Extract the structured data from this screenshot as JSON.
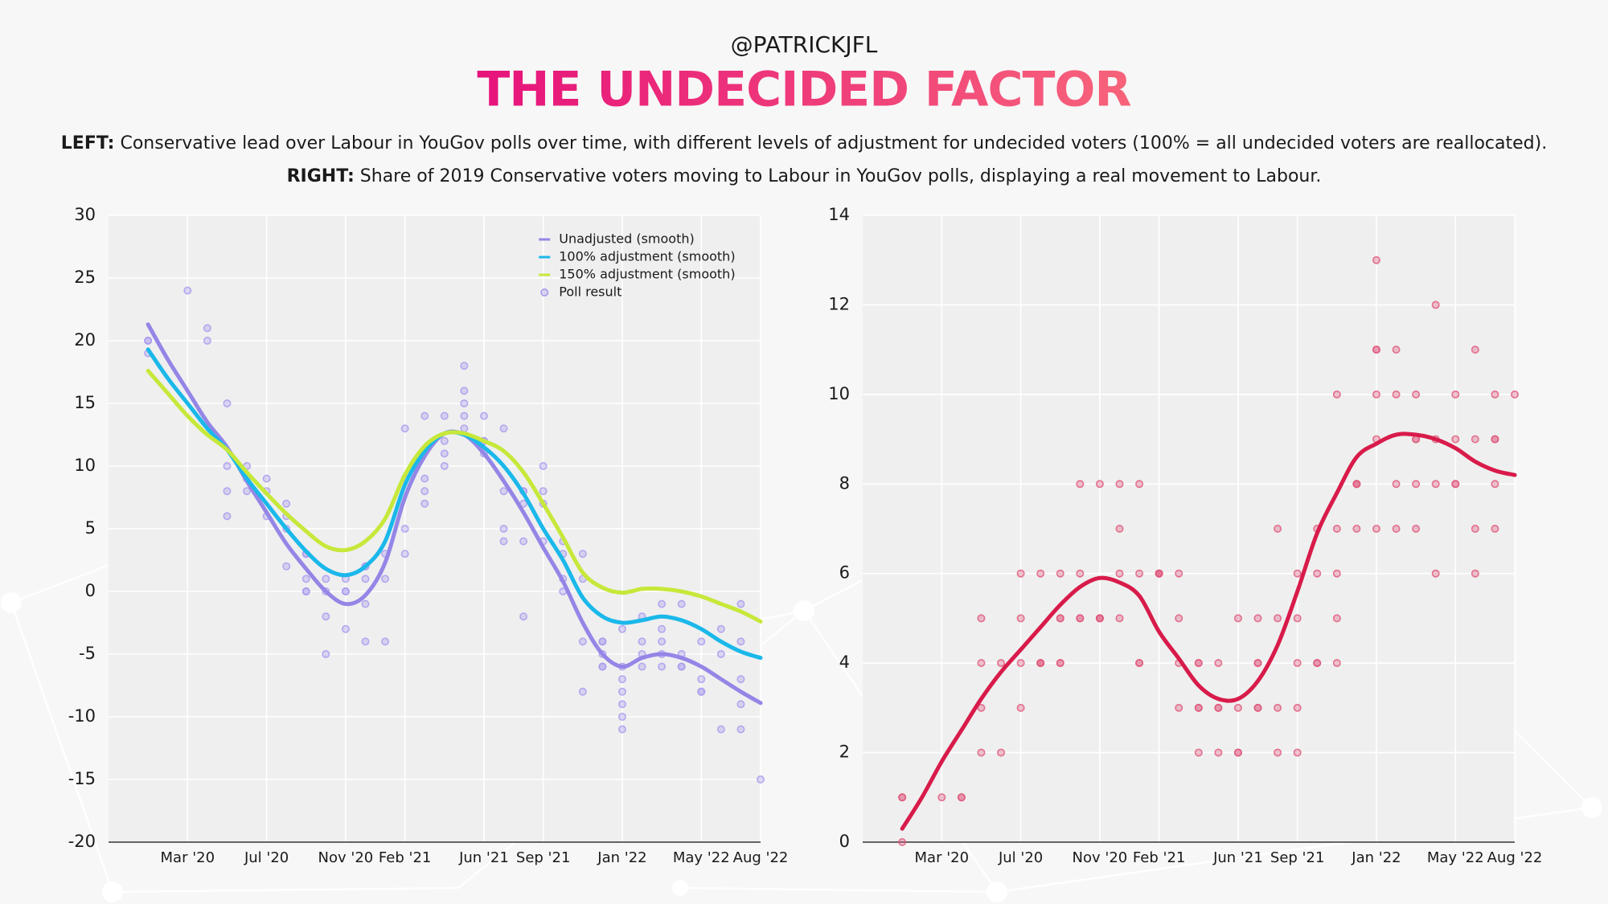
{
  "header": {
    "handle": "@PATRICKJFL",
    "title": "THE UNDECIDED FACTOR",
    "left": {
      "label": "LEFT:",
      "text": "Conservative lead over Labour in YouGov polls over time, with different levels of adjustment for undecided voters (100% = all undecided voters are reallocated)."
    },
    "right": {
      "label": "RIGHT:",
      "text": "Share of 2019 Conservative voters moving to Labour in YouGov polls, displaying a real movement to Labour."
    }
  },
  "chart_data": [
    {
      "type": "line",
      "grid": true,
      "legend": "upper right",
      "xlim": [
        "2019-11",
        "2022-08"
      ],
      "xticks": [
        {
          "value": "2020-03",
          "label": "Mar '20"
        },
        {
          "value": "2020-07",
          "label": "Jul '20"
        },
        {
          "value": "2020-11",
          "label": "Nov '20"
        },
        {
          "value": "2021-02",
          "label": "Feb '21"
        },
        {
          "value": "2021-06",
          "label": "Jun '21"
        },
        {
          "value": "2021-09",
          "label": "Sep '21"
        },
        {
          "value": "2022-01",
          "label": "Jan '22"
        },
        {
          "value": "2022-05",
          "label": "May '22"
        },
        {
          "value": "2022-08",
          "label": "Aug '22"
        }
      ],
      "ylim": [
        -20,
        30
      ],
      "yticks": [
        -20,
        -15,
        -10,
        -5,
        0,
        5,
        10,
        15,
        20,
        25,
        30
      ],
      "x": [
        "2020-01",
        "2020-02",
        "2020-03",
        "2020-04",
        "2020-05",
        "2020-06",
        "2020-07",
        "2020-08",
        "2020-09",
        "2020-10",
        "2020-11",
        "2020-12",
        "2021-01",
        "2021-02",
        "2021-03",
        "2021-04",
        "2021-05",
        "2021-06",
        "2021-07",
        "2021-08",
        "2021-09",
        "2021-10",
        "2021-11",
        "2021-12",
        "2022-01",
        "2022-02",
        "2022-03",
        "2022-04",
        "2022-05",
        "2022-06",
        "2022-07",
        "2022-08"
      ],
      "series": [
        {
          "name": "Unadjusted (smooth)",
          "color": "#9486e6",
          "values": [
            21.3,
            18.5,
            16,
            13.5,
            11.5,
            8.8,
            6.3,
            3.8,
            1.8,
            0,
            -1,
            -0.3,
            2.3,
            7.5,
            10.8,
            12.6,
            12.5,
            11,
            8.8,
            6.3,
            3.5,
            0.8,
            -2.5,
            -5,
            -6,
            -5.3,
            -5,
            -5.3,
            -6,
            -7,
            -8,
            -8.9
          ]
        },
        {
          "name": "100% adjustment (smooth)",
          "color": "#1bb8ea",
          "values": [
            19.3,
            17,
            15,
            13,
            11.3,
            9,
            7,
            5,
            3.2,
            1.8,
            1.3,
            2,
            4,
            8.5,
            11.2,
            12.6,
            12.5,
            11.5,
            10,
            7.8,
            5,
            2.5,
            -0.5,
            -2,
            -2.5,
            -2.3,
            -2,
            -2.3,
            -3,
            -4,
            -4.8,
            -5.3
          ]
        },
        {
          "name": "150% adjustment (smooth)",
          "color": "#c6e83a",
          "values": [
            17.6,
            15.8,
            14,
            12.5,
            11.3,
            9.5,
            7.8,
            6.2,
            4.8,
            3.6,
            3.3,
            4,
            5.8,
            9.3,
            11.6,
            12.6,
            12.6,
            12,
            11.2,
            9.5,
            7,
            4.3,
            1.5,
            0.3,
            -0.1,
            0.2,
            0.2,
            0,
            -0.4,
            -1,
            -1.6,
            -2.4
          ]
        },
        {
          "name": "Poll result",
          "type": "scatter",
          "color": "#a899ee",
          "x": [
            "2020-01",
            "2020-01",
            "2020-01",
            "2020-03",
            "2020-04",
            "2020-04",
            "2020-05",
            "2020-05",
            "2020-05",
            "2020-05",
            "2020-06",
            "2020-06",
            "2020-06",
            "2020-07",
            "2020-07",
            "2020-07",
            "2020-08",
            "2020-08",
            "2020-08",
            "2020-08",
            "2020-09",
            "2020-09",
            "2020-09",
            "2020-09",
            "2020-09",
            "2020-10",
            "2020-10",
            "2020-10",
            "2020-10",
            "2020-11",
            "2020-11",
            "2020-11",
            "2020-11",
            "2020-12",
            "2020-12",
            "2020-12",
            "2020-12",
            "2020-12",
            "2021-01",
            "2021-01",
            "2021-01",
            "2021-02",
            "2021-02",
            "2021-02",
            "2021-02",
            "2021-03",
            "2021-03",
            "2021-03",
            "2021-03",
            "2021-04",
            "2021-04",
            "2021-04",
            "2021-04",
            "2021-05",
            "2021-05",
            "2021-05",
            "2021-05",
            "2021-05",
            "2021-06",
            "2021-06",
            "2021-06",
            "2021-06",
            "2021-07",
            "2021-07",
            "2021-07",
            "2021-07",
            "2021-08",
            "2021-08",
            "2021-08",
            "2021-08",
            "2021-08",
            "2021-09",
            "2021-09",
            "2021-09",
            "2021-09",
            "2021-10",
            "2021-10",
            "2021-10",
            "2021-10",
            "2021-11",
            "2021-11",
            "2021-11",
            "2021-11",
            "2021-12",
            "2021-12",
            "2021-12",
            "2021-12",
            "2021-12",
            "2022-01",
            "2022-01",
            "2022-01",
            "2022-01",
            "2022-01",
            "2022-01",
            "2022-01",
            "2022-02",
            "2022-02",
            "2022-02",
            "2022-02",
            "2022-03",
            "2022-03",
            "2022-03",
            "2022-03",
            "2022-03",
            "2022-04",
            "2022-04",
            "2022-04",
            "2022-04",
            "2022-05",
            "2022-05",
            "2022-05",
            "2022-05",
            "2022-06",
            "2022-06",
            "2022-06",
            "2022-07",
            "2022-07",
            "2022-07",
            "2022-07",
            "2022-07",
            "2022-08"
          ],
          "values": [
            20,
            19,
            20,
            24,
            21,
            20,
            15,
            10,
            6,
            8,
            8,
            10,
            9,
            8,
            6,
            9,
            2,
            7,
            6,
            5,
            0,
            3,
            0,
            3,
            1,
            1,
            0,
            -5,
            -2,
            1,
            -3,
            0,
            0,
            2,
            -4,
            2,
            1,
            -1,
            1,
            -4,
            3,
            3,
            5,
            13,
            9,
            9,
            8,
            7,
            14,
            10,
            12,
            11,
            14,
            15,
            18,
            14,
            16,
            13,
            14,
            12,
            11,
            12,
            13,
            4,
            5,
            8,
            8,
            8,
            7,
            4,
            -2,
            4,
            7,
            8,
            10,
            4,
            3,
            1,
            0,
            1,
            3,
            -4,
            -8,
            -5,
            -4,
            -6,
            -6,
            -4,
            -10,
            -11,
            -8,
            -7,
            -6,
            -9,
            -3,
            -4,
            -5,
            -2,
            -6,
            -6,
            -1,
            -4,
            -3,
            -5,
            -6,
            -6,
            -1,
            -5,
            -8,
            -8,
            -4,
            -7,
            -5,
            -3,
            -11,
            -11,
            -7,
            -1,
            -4,
            -9,
            -15
          ]
        }
      ]
    },
    {
      "type": "line",
      "grid": true,
      "xlim": [
        "2019-11",
        "2022-08"
      ],
      "xticks": [
        {
          "value": "2020-03",
          "label": "Mar '20"
        },
        {
          "value": "2020-07",
          "label": "Jul '20"
        },
        {
          "value": "2020-11",
          "label": "Nov '20"
        },
        {
          "value": "2021-02",
          "label": "Feb '21"
        },
        {
          "value": "2021-06",
          "label": "Jun '21"
        },
        {
          "value": "2021-09",
          "label": "Sep '21"
        },
        {
          "value": "2022-01",
          "label": "Jan '22"
        },
        {
          "value": "2022-05",
          "label": "May '22"
        },
        {
          "value": "2022-08",
          "label": "Aug '22"
        }
      ],
      "ylim": [
        0,
        14
      ],
      "yticks": [
        0,
        2,
        4,
        6,
        8,
        10,
        12,
        14
      ],
      "x": [
        "2020-01",
        "2020-02",
        "2020-03",
        "2020-04",
        "2020-05",
        "2020-06",
        "2020-07",
        "2020-08",
        "2020-09",
        "2020-10",
        "2020-11",
        "2020-12",
        "2021-01",
        "2021-02",
        "2021-03",
        "2021-04",
        "2021-05",
        "2021-06",
        "2021-07",
        "2021-08",
        "2021-09",
        "2021-10",
        "2021-11",
        "2021-12",
        "2022-01",
        "2022-02",
        "2022-03",
        "2022-04",
        "2022-05",
        "2022-06",
        "2022-07",
        "2022-08"
      ],
      "series": [
        {
          "color": "#d81b4a",
          "values": [
            0.3,
            1,
            1.8,
            2.5,
            3.2,
            3.8,
            4.3,
            4.8,
            5.3,
            5.7,
            5.9,
            5.8,
            5.5,
            4.7,
            4.1,
            3.5,
            3.2,
            3.2,
            3.6,
            4.4,
            5.6,
            6.9,
            7.8,
            8.6,
            8.9,
            9.1,
            9.1,
            9.0,
            8.8,
            8.5,
            8.3,
            8.2
          ]
        },
        {
          "type": "scatter",
          "color": "#e0567a",
          "x": [
            "2020-01",
            "2020-01",
            "2020-01",
            "2020-03",
            "2020-04",
            "2020-04",
            "2020-05",
            "2020-05",
            "2020-05",
            "2020-05",
            "2020-06",
            "2020-06",
            "2020-07",
            "2020-07",
            "2020-07",
            "2020-07",
            "2020-08",
            "2020-08",
            "2020-08",
            "2020-08",
            "2020-09",
            "2020-09",
            "2020-09",
            "2020-09",
            "2020-09",
            "2020-10",
            "2020-10",
            "2020-10",
            "2020-10",
            "2020-11",
            "2020-11",
            "2020-11",
            "2020-11",
            "2020-12",
            "2020-12",
            "2020-12",
            "2020-12",
            "2021-01",
            "2021-01",
            "2021-01",
            "2021-01",
            "2021-02",
            "2021-02",
            "2021-02",
            "2021-02",
            "2021-03",
            "2021-03",
            "2021-03",
            "2021-03",
            "2021-04",
            "2021-04",
            "2021-04",
            "2021-04",
            "2021-04",
            "2021-05",
            "2021-05",
            "2021-05",
            "2021-05",
            "2021-06",
            "2021-06",
            "2021-06",
            "2021-06",
            "2021-07",
            "2021-07",
            "2021-07",
            "2021-07",
            "2021-07",
            "2021-08",
            "2021-08",
            "2021-08",
            "2021-08",
            "2021-09",
            "2021-09",
            "2021-09",
            "2021-09",
            "2021-09",
            "2021-10",
            "2021-10",
            "2021-10",
            "2021-10",
            "2021-11",
            "2021-11",
            "2021-11",
            "2021-11",
            "2021-11",
            "2021-12",
            "2021-12",
            "2021-12",
            "2021-12",
            "2022-01",
            "2022-01",
            "2022-01",
            "2022-01",
            "2022-01",
            "2022-01",
            "2022-02",
            "2022-02",
            "2022-02",
            "2022-02",
            "2022-03",
            "2022-03",
            "2022-03",
            "2022-03",
            "2022-03",
            "2022-04",
            "2022-04",
            "2022-04",
            "2022-04",
            "2022-05",
            "2022-05",
            "2022-05",
            "2022-05",
            "2022-06",
            "2022-06",
            "2022-06",
            "2022-06",
            "2022-07",
            "2022-07",
            "2022-07",
            "2022-07",
            "2022-07",
            "2022-08"
          ],
          "values": [
            1,
            1,
            0,
            1,
            1,
            1,
            2,
            5,
            4,
            3,
            4,
            2,
            4,
            3,
            5,
            6,
            6,
            4,
            4,
            4,
            5,
            4,
            5,
            4,
            6,
            5,
            5,
            8,
            6,
            5,
            5,
            5,
            8,
            5,
            8,
            6,
            7,
            6,
            8,
            4,
            4,
            6,
            6,
            6,
            6,
            6,
            4,
            5,
            3,
            3,
            3,
            4,
            4,
            2,
            2,
            3,
            3,
            4,
            2,
            3,
            5,
            2,
            3,
            5,
            4,
            3,
            4,
            3,
            2,
            5,
            7,
            4,
            3,
            2,
            6,
            5,
            4,
            4,
            6,
            7,
            4,
            6,
            5,
            7,
            10,
            8,
            7,
            8,
            8,
            13,
            11,
            10,
            7,
            11,
            9,
            8,
            10,
            11,
            7,
            9,
            8,
            9,
            7,
            10,
            8,
            12,
            6,
            9,
            8,
            10,
            8,
            9,
            7,
            9,
            6,
            11,
            9,
            9,
            7,
            8,
            10,
            10
          ]
        }
      ]
    }
  ]
}
